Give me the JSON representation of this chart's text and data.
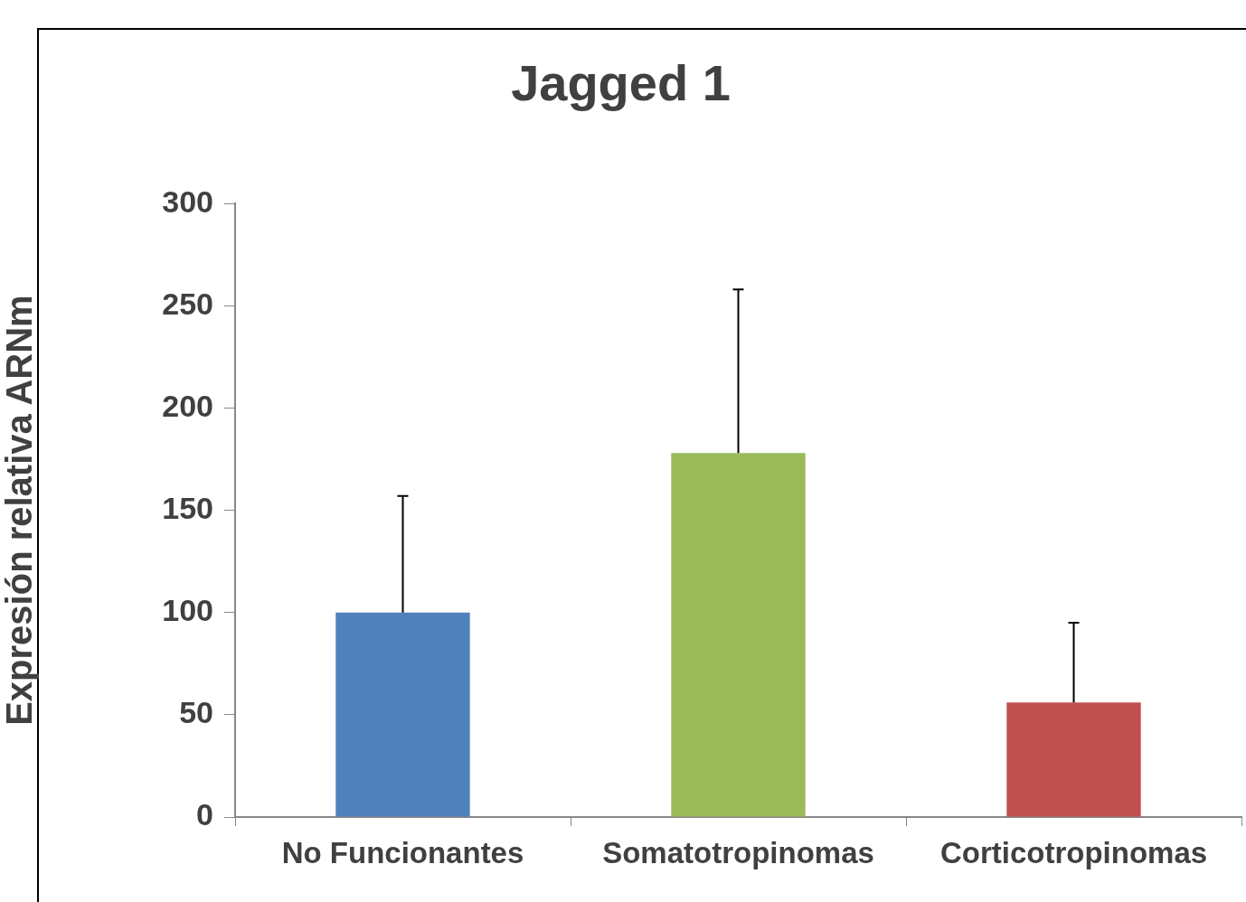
{
  "chart_data": {
    "type": "bar",
    "title": "Jagged 1",
    "ylabel": "Expresión relativa ARNm",
    "categories": [
      "No Funcionantes",
      "Somatotropinomas",
      "Corticotropinomas"
    ],
    "values": [
      100,
      178,
      56
    ],
    "colors": [
      "#4f81bd",
      "#9bbb59",
      "#c0504d"
    ],
    "errors": [
      [
        100,
        157
      ],
      [
        178,
        258
      ],
      [
        56,
        95
      ]
    ],
    "ylim": [
      0,
      300
    ],
    "yticks": [
      0,
      50,
      100,
      150,
      200,
      250,
      300
    ]
  }
}
